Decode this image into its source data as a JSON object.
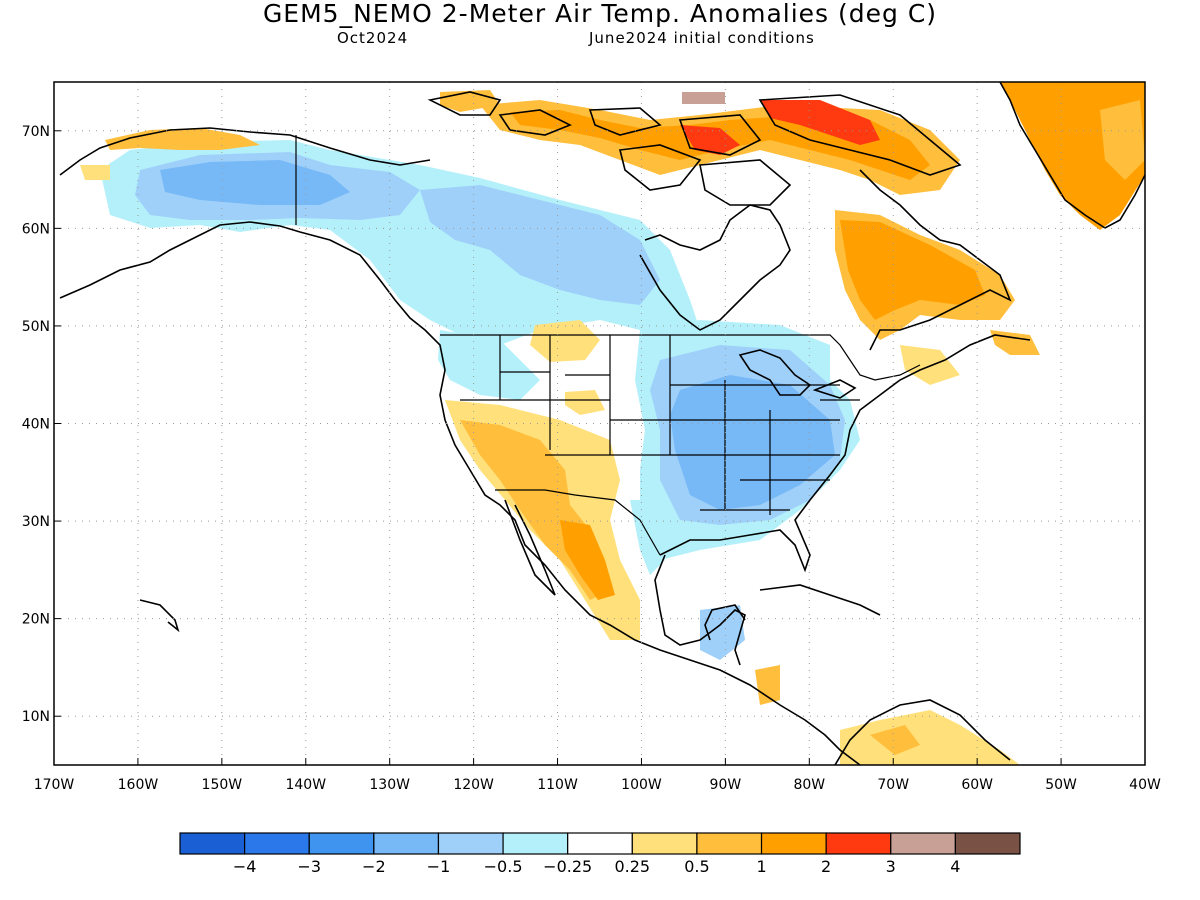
{
  "title": "GEM5_NEMO 2-Meter Air Temp. Anomalies (deg C)",
  "subtitle_left": "Oct2024",
  "subtitle_right": "June2024 initial conditions",
  "map": {
    "lon_range": [
      -170,
      -40
    ],
    "lat_range": [
      5,
      75
    ],
    "lon_ticks": [
      {
        "value": -170,
        "label": "170W"
      },
      {
        "value": -160,
        "label": "160W"
      },
      {
        "value": -150,
        "label": "150W"
      },
      {
        "value": -140,
        "label": "140W"
      },
      {
        "value": -130,
        "label": "130W"
      },
      {
        "value": -120,
        "label": "120W"
      },
      {
        "value": -110,
        "label": "110W"
      },
      {
        "value": -100,
        "label": "100W"
      },
      {
        "value": -90,
        "label": "90W"
      },
      {
        "value": -80,
        "label": "80W"
      },
      {
        "value": -70,
        "label": "70W"
      },
      {
        "value": -60,
        "label": "60W"
      },
      {
        "value": -50,
        "label": "50W"
      },
      {
        "value": -40,
        "label": "40W"
      }
    ],
    "lat_ticks": [
      {
        "value": 10,
        "label": "10N"
      },
      {
        "value": 20,
        "label": "20N"
      },
      {
        "value": 30,
        "label": "30N"
      },
      {
        "value": 40,
        "label": "40N"
      },
      {
        "value": 50,
        "label": "50N"
      },
      {
        "value": 60,
        "label": "60N"
      },
      {
        "value": 70,
        "label": "70N"
      }
    ],
    "gridlines": "dotted"
  },
  "colorbar": {
    "colors": [
      "#1a60d4",
      "#2a78ea",
      "#3f94f0",
      "#77b8f6",
      "#9fd0fa",
      "#b4f0fa",
      "#ffffff",
      "#ffe07a",
      "#ffbe3c",
      "#ffa000",
      "#ff3a10",
      "#c8a096",
      "#7a5245"
    ],
    "labels": [
      "−4",
      "−3",
      "−2",
      "−1",
      "−0.5",
      "−0.25",
      "0.25",
      "0.5",
      "1",
      "2",
      "3",
      "4"
    ]
  }
}
